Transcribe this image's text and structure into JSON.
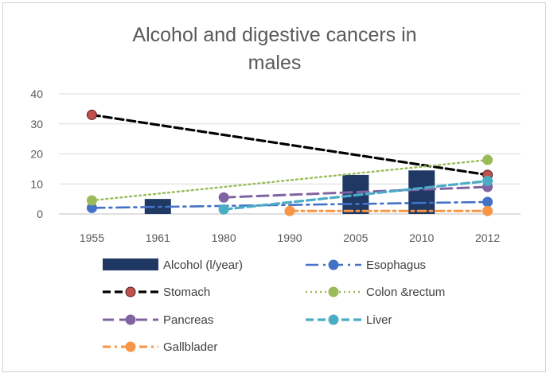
{
  "chart_data": {
    "type": "bar+line",
    "title_lines": [
      "Alcohol and digestive cancers in",
      "males"
    ],
    "categories": [
      "1955",
      "1961",
      "1980",
      "1990",
      "2005",
      "2010",
      "2012"
    ],
    "ylim": [
      0,
      40
    ],
    "yticks": [
      "0",
      "10",
      "20",
      "30",
      "40"
    ],
    "grid": true,
    "legend_position": "bottom",
    "bar_series": {
      "name": "Alcohol (l/year)",
      "color": "#1f3864",
      "values": [
        null,
        5,
        null,
        null,
        13,
        14.5,
        null
      ]
    },
    "line_series": [
      {
        "name": "Esophagus",
        "color": "#4472c4",
        "dash": "long-dash-dot",
        "marker": true,
        "values": [
          2,
          null,
          null,
          null,
          null,
          null,
          4
        ]
      },
      {
        "name": "Stomach",
        "color": "#000000",
        "marker_color": "#c0504d",
        "dash": "dash",
        "marker": true,
        "values": [
          33,
          null,
          null,
          null,
          null,
          null,
          13
        ]
      },
      {
        "name": "Colon &rectum",
        "color": "#9bbb59",
        "dash": "dot",
        "marker": true,
        "values": [
          4.5,
          null,
          null,
          null,
          null,
          null,
          18
        ]
      },
      {
        "name": "Pancreas",
        "color": "#8064a2",
        "dash": "long-dash",
        "marker": true,
        "values": [
          null,
          null,
          5.5,
          null,
          null,
          null,
          9
        ]
      },
      {
        "name": "Liver",
        "color": "#4bacc6",
        "dash": "dash",
        "marker": true,
        "values": [
          null,
          null,
          1.5,
          null,
          null,
          null,
          11
        ]
      },
      {
        "name": "Gallblader",
        "color": "#f79646",
        "dash": "dash-dot",
        "marker": true,
        "values": [
          null,
          null,
          null,
          1,
          null,
          null,
          1
        ]
      }
    ]
  }
}
